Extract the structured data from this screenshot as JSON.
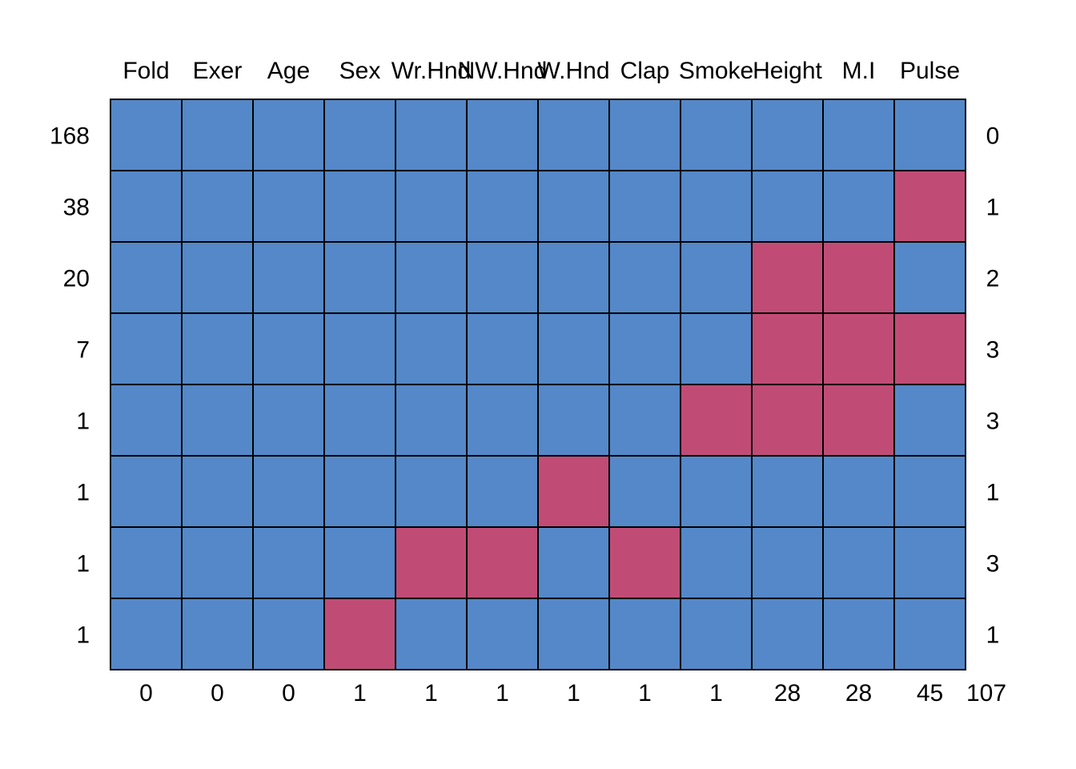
{
  "chart_data": {
    "type": "heatmap",
    "title": "",
    "variables": [
      "Fold",
      "Exer",
      "Age",
      "Sex",
      "Wr.Hnd",
      "NW.Hnd",
      "W.Hnd",
      "Clap",
      "Smoke",
      "Height",
      "M.I",
      "Pulse"
    ],
    "patterns": [
      {
        "count": "168",
        "missing_vars": "0",
        "cells": [
          1,
          1,
          1,
          1,
          1,
          1,
          1,
          1,
          1,
          1,
          1,
          1
        ]
      },
      {
        "count": "38",
        "missing_vars": "1",
        "cells": [
          1,
          1,
          1,
          1,
          1,
          1,
          1,
          1,
          1,
          1,
          1,
          0
        ]
      },
      {
        "count": "20",
        "missing_vars": "2",
        "cells": [
          1,
          1,
          1,
          1,
          1,
          1,
          1,
          1,
          1,
          0,
          0,
          1
        ]
      },
      {
        "count": "7",
        "missing_vars": "3",
        "cells": [
          1,
          1,
          1,
          1,
          1,
          1,
          1,
          1,
          1,
          0,
          0,
          0
        ]
      },
      {
        "count": "1",
        "missing_vars": "3",
        "cells": [
          1,
          1,
          1,
          1,
          1,
          1,
          1,
          1,
          0,
          0,
          0,
          1
        ]
      },
      {
        "count": "1",
        "missing_vars": "1",
        "cells": [
          1,
          1,
          1,
          1,
          1,
          1,
          0,
          1,
          1,
          1,
          1,
          1
        ]
      },
      {
        "count": "1",
        "missing_vars": "3",
        "cells": [
          1,
          1,
          1,
          1,
          0,
          0,
          1,
          0,
          1,
          1,
          1,
          1
        ]
      },
      {
        "count": "1",
        "missing_vars": "1",
        "cells": [
          1,
          1,
          1,
          0,
          1,
          1,
          1,
          1,
          1,
          1,
          1,
          1
        ]
      }
    ],
    "column_missing_counts": [
      "0",
      "0",
      "0",
      "1",
      "1",
      "1",
      "1",
      "1",
      "1",
      "28",
      "28",
      "45"
    ],
    "total_missing": "107",
    "legend": "none",
    "colors": {
      "observed": "#5488c8",
      "missing": "#c04c75",
      "border": "#000000"
    }
  }
}
